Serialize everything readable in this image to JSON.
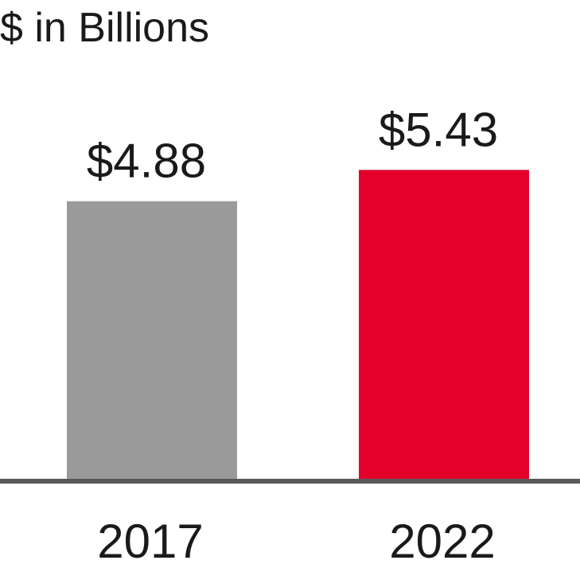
{
  "chart_data": {
    "type": "bar",
    "title": "",
    "unit_label": "$ in Billions",
    "xlabel": "",
    "ylabel": "",
    "categories": [
      "2017",
      "2022"
    ],
    "values": [
      4.88,
      5.43
    ],
    "value_labels": [
      "$4.88",
      "$5.43"
    ],
    "colors": [
      "#9b9a9a",
      "#e4002b"
    ],
    "axis_color": "#5a5a5a",
    "ylim": [
      0,
      6
    ],
    "grid": false,
    "legend": "none"
  }
}
